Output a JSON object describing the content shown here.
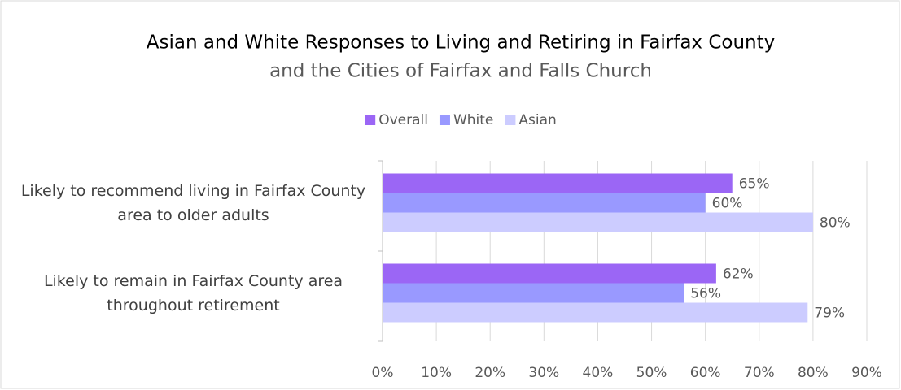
{
  "chart_data": {
    "type": "hbar",
    "title": "Asian and White Responses to Living and Retiring in Fairfax County",
    "subtitle": "and the Cities of Fairfax and Falls Church",
    "categories": [
      "Likely to recommend living in Fairfax County area to older adults",
      "Likely to remain in Fairfax County area throughout retirement"
    ],
    "series": [
      {
        "name": "Overall",
        "color": "#9b66f5",
        "values": [
          65,
          62
        ],
        "value_labels": [
          "65%",
          "62%"
        ]
      },
      {
        "name": "White",
        "color": "#9999ff",
        "values": [
          60,
          56
        ],
        "value_labels": [
          "60%",
          "56%"
        ]
      },
      {
        "name": "Asian",
        "color": "#ccccff",
        "values": [
          80,
          79
        ],
        "value_labels": [
          "80%",
          "79%"
        ]
      }
    ],
    "xlim": [
      0,
      90
    ],
    "xticks": [
      {
        "value": 0,
        "label": "0%"
      },
      {
        "value": 10,
        "label": "10%"
      },
      {
        "value": 20,
        "label": "20%"
      },
      {
        "value": 30,
        "label": "30%"
      },
      {
        "value": 40,
        "label": "40%"
      },
      {
        "value": 50,
        "label": "50%"
      },
      {
        "value": 60,
        "label": "60%"
      },
      {
        "value": 70,
        "label": "70%"
      },
      {
        "value": 80,
        "label": "80%"
      },
      {
        "value": 90,
        "label": "90%"
      }
    ],
    "grid": true,
    "legend": "top"
  }
}
